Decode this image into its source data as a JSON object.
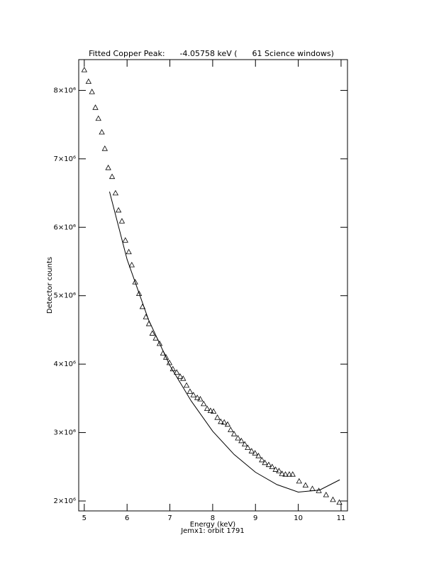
{
  "chart_data": {
    "type": "scatter",
    "title": "Fitted Copper Peak:      -4.05758 keV (      61 Science windows)",
    "x_label": "Energy (keV)",
    "subtitle": "Jemx1: orbit 1791",
    "y_label": "Detector counts",
    "xlim": [
      4.87,
      11.15
    ],
    "ylim": [
      1855000,
      8450000
    ],
    "xticks": [
      5,
      6,
      7,
      8,
      9,
      10,
      11
    ],
    "yticks": [
      {
        "value": 2000000,
        "label": "2×10⁶"
      },
      {
        "value": 3000000,
        "label": "3×10⁶"
      },
      {
        "value": 4000000,
        "label": "4×10⁶"
      },
      {
        "value": 5000000,
        "label": "5×10⁶"
      },
      {
        "value": 6000000,
        "label": "6×10⁶"
      },
      {
        "value": 7000000,
        "label": "7×10⁶"
      },
      {
        "value": 8000000,
        "label": "8×10⁶"
      }
    ],
    "color": "#000000",
    "points": {
      "x": [
        5.0,
        5.1,
        5.18,
        5.26,
        5.33,
        5.41,
        5.48,
        5.56,
        5.65,
        5.73,
        5.8,
        5.88,
        5.96,
        6.04,
        6.11,
        6.19,
        6.28,
        6.36,
        6.44,
        6.51,
        6.59,
        6.67,
        6.76,
        6.84,
        6.91,
        6.99,
        7.07,
        7.16,
        7.24,
        7.31,
        7.39,
        7.47,
        7.55,
        7.64,
        7.71,
        7.79,
        7.87,
        7.95,
        8.02,
        8.11,
        8.19,
        8.27,
        8.35,
        8.42,
        8.5,
        8.59,
        8.67,
        8.75,
        8.82,
        8.91,
        8.99,
        9.07,
        9.15,
        9.22,
        9.31,
        9.39,
        9.47,
        9.55,
        9.62,
        9.7,
        9.79,
        9.87,
        10.02,
        10.17,
        10.33,
        10.48,
        10.65,
        10.81,
        10.96
      ],
      "y": [
        8300000,
        8130000,
        7980000,
        7750000,
        7590000,
        7390000,
        7150000,
        6870000,
        6740000,
        6500000,
        6250000,
        6090000,
        5810000,
        5640000,
        5450000,
        5200000,
        5030000,
        4840000,
        4690000,
        4590000,
        4450000,
        4380000,
        4300000,
        4160000,
        4100000,
        4020000,
        3930000,
        3880000,
        3820000,
        3790000,
        3690000,
        3600000,
        3550000,
        3510000,
        3490000,
        3420000,
        3350000,
        3320000,
        3310000,
        3220000,
        3160000,
        3150000,
        3120000,
        3040000,
        2980000,
        2920000,
        2880000,
        2830000,
        2780000,
        2730000,
        2700000,
        2660000,
        2600000,
        2560000,
        2530000,
        2500000,
        2460000,
        2440000,
        2400000,
        2390000,
        2390000,
        2390000,
        2290000,
        2230000,
        2180000,
        2150000,
        2090000,
        2020000,
        1980000
      ]
    },
    "fit": {
      "x": [
        5.59,
        6.0,
        6.5,
        7.0,
        7.5,
        8.0,
        8.5,
        9.0,
        9.5,
        10.0,
        10.5,
        10.97
      ],
      "y": [
        6520000,
        5530000,
        4650000,
        3980000,
        3460000,
        3020000,
        2680000,
        2420000,
        2240000,
        2130000,
        2160000,
        2310000
      ]
    }
  }
}
